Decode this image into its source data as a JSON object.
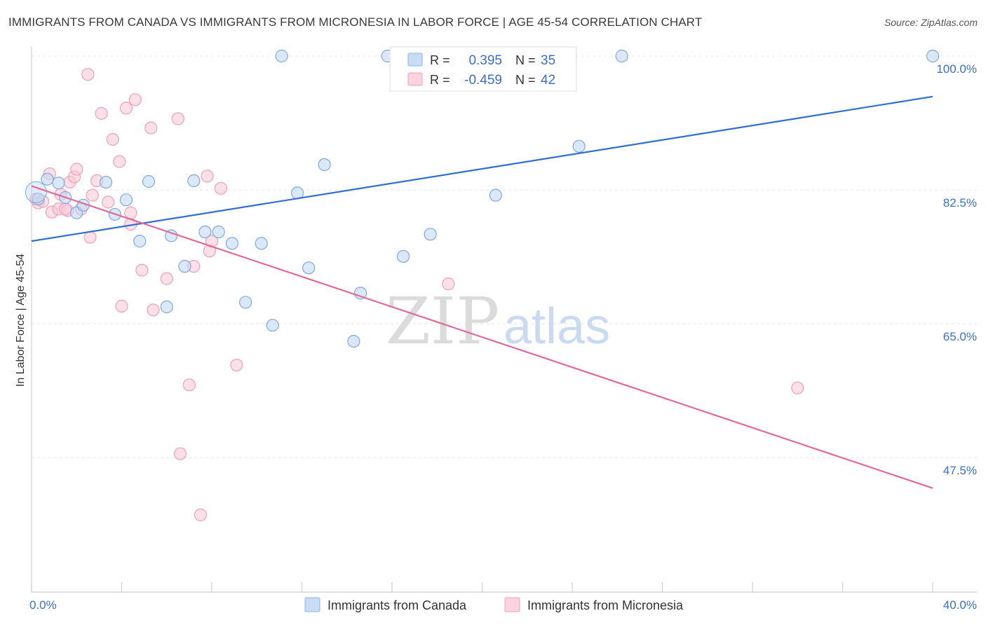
{
  "title": "IMMIGRANTS FROM CANADA VS IMMIGRANTS FROM MICRONESIA IN LABOR FORCE | AGE 45-54 CORRELATION CHART",
  "source": "Source: ZipAtlas.com",
  "watermark": {
    "zip": "ZIP",
    "atlas": "atlas"
  },
  "colors": {
    "canada": "#a9c8ef",
    "canada_line": "#2f6fd1",
    "micronesia": "#f5b8cb",
    "micronesia_line": "#e0699a",
    "accent": "#3b6fc9"
  },
  "legend": {
    "rows": [
      {
        "r_label": "R =",
        "r_value": "0.395",
        "n_label": "N =",
        "n_value": "35"
      },
      {
        "r_label": "R =",
        "r_value": "-0.459",
        "n_label": "N =",
        "n_value": "42"
      }
    ]
  },
  "chart_data": {
    "type": "scatter",
    "title": "IMMIGRANTS FROM CANADA VS IMMIGRANTS FROM MICRONESIA IN LABOR FORCE | AGE 45-54 CORRELATION CHART",
    "xlabel": "",
    "ylabel": "In Labor Force | Age 45-54",
    "xlim": [
      0,
      40
    ],
    "ylim": [
      30,
      100
    ],
    "x_tick_labels": [
      "0.0%",
      "40.0%"
    ],
    "y_ticks": [
      47.5,
      65.0,
      82.5,
      100.0
    ],
    "y_tick_labels": [
      "47.5%",
      "65.0%",
      "82.5%",
      "100.0%"
    ],
    "grid": true,
    "legend_position": "top-center",
    "series": [
      {
        "name": "Immigrants from Canada",
        "color": "#a9c8ef",
        "points": [
          [
            0.3,
            81.3
          ],
          [
            0.7,
            83.9
          ],
          [
            1.2,
            83.4
          ],
          [
            1.5,
            81.5
          ],
          [
            2.0,
            79.5
          ],
          [
            2.3,
            80.5
          ],
          [
            3.3,
            83.5
          ],
          [
            3.7,
            79.3
          ],
          [
            4.2,
            81.2
          ],
          [
            4.8,
            75.8
          ],
          [
            5.2,
            83.6
          ],
          [
            6.2,
            76.5
          ],
          [
            6.0,
            67.2
          ],
          [
            6.8,
            72.5
          ],
          [
            7.2,
            83.7
          ],
          [
            7.7,
            77.0
          ],
          [
            8.3,
            77.0
          ],
          [
            8.9,
            75.5
          ],
          [
            9.5,
            67.8
          ],
          [
            10.2,
            75.5
          ],
          [
            10.7,
            64.8
          ],
          [
            11.1,
            100.0
          ],
          [
            11.8,
            82.1
          ],
          [
            12.3,
            72.3
          ],
          [
            13.0,
            85.8
          ],
          [
            14.3,
            62.7
          ],
          [
            14.6,
            69.0
          ],
          [
            15.8,
            100.0
          ],
          [
            16.5,
            73.8
          ],
          [
            16.8,
            100.0
          ],
          [
            17.7,
            76.7
          ],
          [
            20.6,
            81.8
          ],
          [
            24.3,
            88.2
          ],
          [
            26.2,
            100.0
          ],
          [
            40.0,
            100.0
          ]
        ],
        "trend": {
          "x": [
            0,
            40
          ],
          "y": [
            75.8,
            94.7
          ]
        }
      },
      {
        "name": "Immigrants from Micronesia",
        "color": "#f5b8cb",
        "points": [
          [
            0.2,
            81.3
          ],
          [
            0.3,
            80.8
          ],
          [
            0.5,
            81.0
          ],
          [
            0.8,
            84.6
          ],
          [
            0.9,
            79.6
          ],
          [
            1.2,
            80.0
          ],
          [
            1.3,
            81.9
          ],
          [
            1.6,
            79.8
          ],
          [
            1.7,
            83.5
          ],
          [
            1.9,
            84.2
          ],
          [
            2.0,
            85.2
          ],
          [
            2.2,
            80.0
          ],
          [
            2.5,
            97.6
          ],
          [
            2.7,
            81.8
          ],
          [
            2.9,
            83.7
          ],
          [
            3.1,
            92.5
          ],
          [
            3.4,
            80.9
          ],
          [
            3.6,
            89.1
          ],
          [
            3.9,
            86.2
          ],
          [
            4.0,
            67.3
          ],
          [
            4.2,
            93.2
          ],
          [
            4.4,
            78.0
          ],
          [
            4.6,
            94.3
          ],
          [
            4.9,
            72.0
          ],
          [
            5.3,
            90.6
          ],
          [
            5.4,
            66.8
          ],
          [
            6.0,
            70.9
          ],
          [
            6.5,
            91.8
          ],
          [
            6.6,
            48.0
          ],
          [
            7.0,
            57.0
          ],
          [
            7.2,
            72.5
          ],
          [
            7.5,
            40.0
          ],
          [
            7.8,
            84.3
          ],
          [
            7.9,
            74.5
          ],
          [
            8.0,
            75.8
          ],
          [
            8.4,
            82.7
          ],
          [
            9.1,
            59.6
          ],
          [
            18.5,
            70.2
          ],
          [
            34.0,
            56.6
          ],
          [
            1.5,
            80.0
          ],
          [
            2.6,
            76.3
          ],
          [
            4.4,
            79.5
          ]
        ],
        "trend": {
          "x": [
            0,
            40
          ],
          "y": [
            83.0,
            43.5
          ]
        }
      }
    ]
  },
  "bottom_legend": [
    {
      "label": "Immigrants from Canada"
    },
    {
      "label": "Immigrants from Micronesia"
    }
  ]
}
